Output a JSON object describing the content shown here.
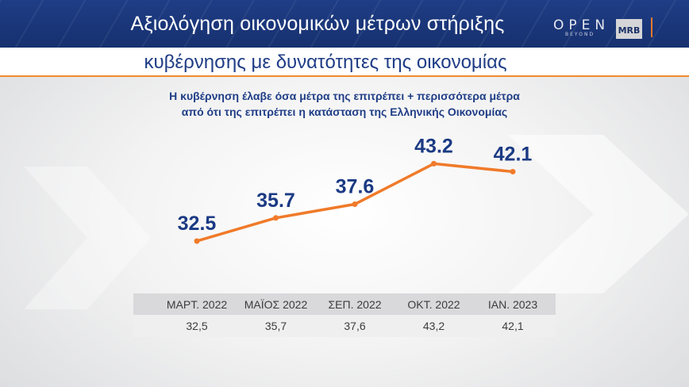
{
  "header": {
    "title_line1": "Αξιολόγηση οικονομικών μέτρων στήριξης",
    "title_line2": "κυβέρνησης με δυνατότητες της οικονομίας",
    "logo_open": "OPEN",
    "logo_beyond": "BEYOND",
    "logo_mrb": "MRB"
  },
  "question": {
    "line1": "Η κυβέρνηση έλαβε όσα μέτρα της επιτρέπει + περισσότερα μέτρα",
    "line2": "από ότι της επιτρέπει η κατάσταση της Ελληνικής Οικονομίας"
  },
  "colors": {
    "navy": "#1f3d86",
    "orange": "#f07a2a",
    "label": "#1b3a84"
  },
  "chart_data": {
    "type": "line",
    "categories": [
      "ΜΑΡΤ. 2022",
      "ΜΑΪΟΣ 2022",
      "ΣΕΠ. 2022",
      "ΟΚΤ. 2022",
      "ΙΑΝ. 2023"
    ],
    "series": [
      {
        "values": [
          32.5,
          35.7,
          37.6,
          43.2,
          42.1
        ]
      }
    ],
    "data_labels": [
      "32.5",
      "35.7",
      "37.6",
      "43.2",
      "42.1"
    ],
    "table_values": [
      "32,5",
      "35,7",
      "37,6",
      "43,2",
      "42,1"
    ],
    "ylim": [
      28,
      45
    ],
    "grid": false
  }
}
